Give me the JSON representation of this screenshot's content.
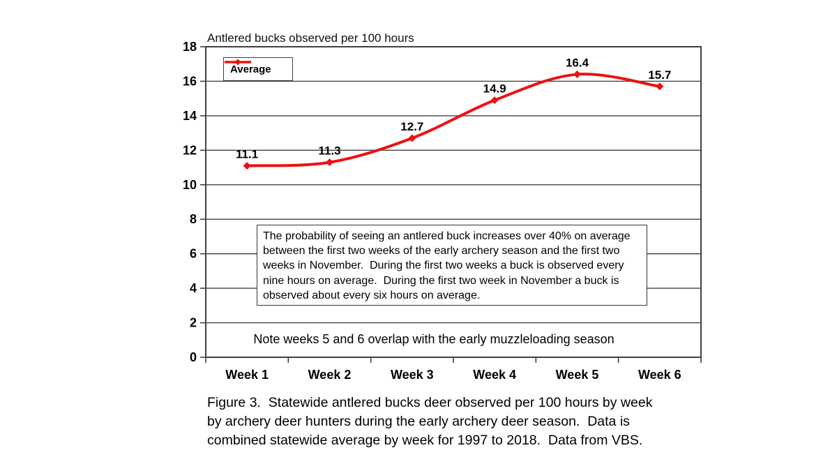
{
  "figure": {
    "title": "Antlered bucks observed per 100 hours",
    "legend_label": "Average",
    "annotation": "The probability of seeing an antlered buck increases over 40% on average\nbetween the first two weeks of the early archery season and the first two\nweeks in November.  During the first two weeks a buck is observed every\nnine hours on average.  During the first two week in November a buck is\nobserved about every six hours on average.",
    "note": "Note weeks 5 and 6 overlap with the early muzzleloading season",
    "caption": "Figure 3.  Statewide antlered bucks deer observed per 100 hours by week\nby archery deer hunters during the early archery deer season.  Data is\ncombined statewide average by week for 1997 to 2018.  Data from VBS."
  },
  "chart_data": {
    "type": "line",
    "title": "Antlered bucks observed per 100 hours",
    "categories": [
      "Week 1",
      "Week 2",
      "Week 3",
      "Week 4",
      "Week 5",
      "Week 6"
    ],
    "series": [
      {
        "name": "Average",
        "values": [
          11.1,
          11.3,
          12.7,
          14.9,
          16.4,
          15.7
        ]
      }
    ],
    "data_labels": [
      "11.1",
      "11.3",
      "12.7",
      "14.9",
      "16.4",
      "15.7"
    ],
    "ylim": [
      0,
      18
    ],
    "yticks": [
      0,
      2,
      4,
      6,
      8,
      10,
      12,
      14,
      16,
      18
    ],
    "grid": true,
    "legend_position": "top-left-inside",
    "marker": "diamond",
    "smooth": true,
    "colors": {
      "series": "#ED1111",
      "axis": "#404040",
      "text": "#000000"
    }
  }
}
